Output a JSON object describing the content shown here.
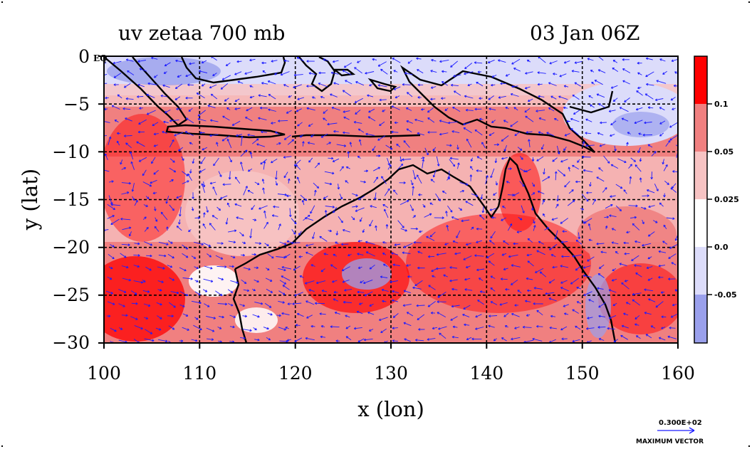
{
  "title": {
    "left": "uv zetaa 700 mb",
    "right": "03 Jan 06Z"
  },
  "axes": {
    "xlabel": "x (lon)",
    "ylabel": "y (lat)",
    "x_ticks": [
      "100",
      "110",
      "120",
      "130",
      "140",
      "150",
      "160"
    ],
    "y_ticks": [
      "0",
      "−5",
      "−10",
      "−15",
      "−20",
      "−25",
      "−30"
    ],
    "corner_note": "EQ"
  },
  "colorbar": {
    "levels": [
      "0.1",
      "0.05",
      "0.025",
      "0.0",
      "-0.05"
    ],
    "colors": [
      "#ff0000",
      "#f08080",
      "#f7c3c3",
      "#ffffff",
      "#dcdcfa",
      "#9aa0ec"
    ]
  },
  "vector_key": {
    "magnitude": "0.300E+02",
    "label": "MAXIMUM VECTOR"
  },
  "colors": {
    "vector": "#1c1cff",
    "coast": "#000000",
    "strong_pos": "#ff0000",
    "mod_pos": "#f08080",
    "weak_pos": "#f7c3c3",
    "neg": "#dcdcfa",
    "strong_neg": "#9aa0ec"
  },
  "chart_data": {
    "type": "heatmap",
    "title": "uv zetaa 700 mb",
    "valid_time": "03 Jan 06Z",
    "xlabel": "x (lon)",
    "ylabel": "y (lat)",
    "xlim": [
      100,
      160
    ],
    "ylim": [
      -30,
      0
    ],
    "contour_levels": [
      -0.05,
      0.0,
      0.025,
      0.05,
      0.1
    ],
    "overlays": [
      "wind vectors (u, v)",
      "coastlines",
      "lat/lon grid every 10 deg"
    ],
    "max_vector": "0.300E+02"
  }
}
